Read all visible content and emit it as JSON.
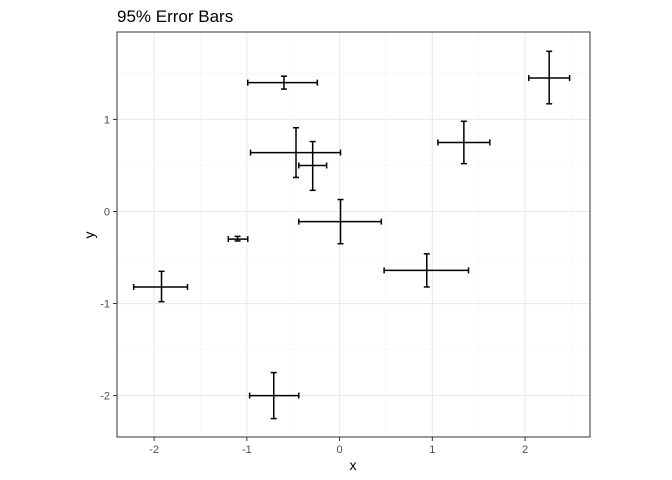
{
  "chart_data": {
    "type": "scatter",
    "title": "95% Error Bars",
    "xlabel": "x",
    "ylabel": "y",
    "xlim": [
      -2.4,
      2.7
    ],
    "ylim": [
      -2.45,
      1.95
    ],
    "x_ticks": [
      -2,
      -1,
      0,
      1,
      2
    ],
    "y_ticks": [
      -2,
      -1,
      0,
      1
    ],
    "grid": true,
    "colors": {
      "panel_border": "#333333",
      "grid_major": "#ebebeb",
      "grid_minor": "#f4f4f4",
      "errorbar": "#000000"
    },
    "points": [
      {
        "x": -1.92,
        "y": -0.82,
        "xmin": -2.22,
        "xmax": -1.64,
        "ymin": -0.98,
        "ymax": -0.65
      },
      {
        "x": -1.1,
        "y": -0.3,
        "xmin": -1.2,
        "xmax": -0.99,
        "ymin": -0.32,
        "ymax": -0.27
      },
      {
        "x": -0.6,
        "y": 1.4,
        "xmin": -0.99,
        "xmax": -0.24,
        "ymin": 1.33,
        "ymax": 1.47
      },
      {
        "x": -0.47,
        "y": 0.64,
        "xmin": -0.96,
        "xmax": 0.01,
        "ymin": 0.37,
        "ymax": 0.91
      },
      {
        "x": -0.29,
        "y": 0.5,
        "xmin": -0.44,
        "xmax": -0.14,
        "ymin": 0.23,
        "ymax": 0.76
      },
      {
        "x": 0.01,
        "y": -0.11,
        "xmin": -0.44,
        "xmax": 0.45,
        "ymin": -0.35,
        "ymax": 0.13
      },
      {
        "x": 0.94,
        "y": -0.64,
        "xmin": 0.48,
        "xmax": 1.39,
        "ymin": -0.82,
        "ymax": -0.46
      },
      {
        "x": 1.34,
        "y": 0.75,
        "xmin": 1.06,
        "xmax": 1.62,
        "ymin": 0.52,
        "ymax": 0.98
      },
      {
        "x": 2.26,
        "y": 1.45,
        "xmin": 2.04,
        "xmax": 2.48,
        "ymin": 1.17,
        "ymax": 1.74
      },
      {
        "x": -0.71,
        "y": -2.0,
        "xmin": -0.97,
        "xmax": -0.44,
        "ymin": -2.25,
        "ymax": -1.75
      }
    ]
  }
}
